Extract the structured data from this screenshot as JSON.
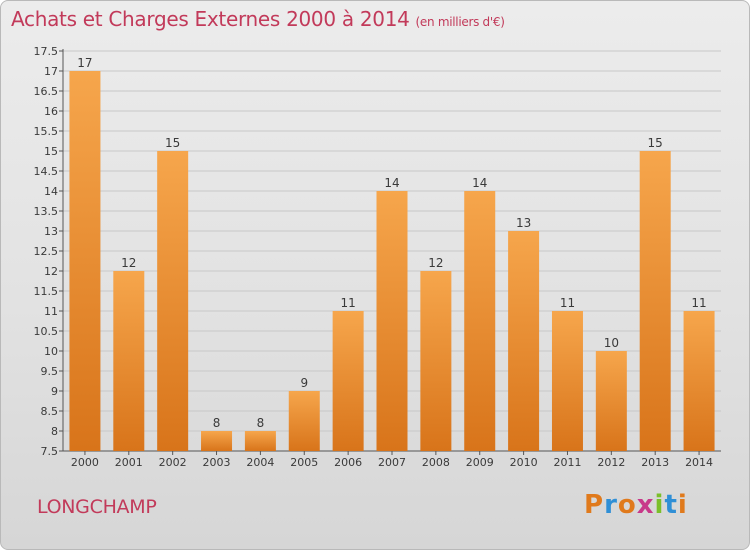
{
  "title": "Achats et Charges Externes 2000 à 2014",
  "subtitle": "(en milliers d'€)",
  "commune": "LONGCHAMP",
  "logo": {
    "letters": [
      "P",
      "r",
      "o",
      "x",
      "i",
      "t",
      "i"
    ],
    "colors": [
      "#e07a1c",
      "#2f8fd6",
      "#e07a1c",
      "#c8398a",
      "#7bbf2a",
      "#2f8fd6",
      "#e07a1c"
    ]
  },
  "colors": {
    "bar_top": "#f6a64c",
    "bar_bottom": "#d8741a",
    "title": "#c23a5a"
  },
  "chart_data": {
    "type": "bar",
    "categories": [
      "2000",
      "2001",
      "2002",
      "2003",
      "2004",
      "2005",
      "2006",
      "2007",
      "2008",
      "2009",
      "2010",
      "2011",
      "2012",
      "2013",
      "2014"
    ],
    "values": [
      17,
      12,
      15,
      8,
      8,
      9,
      11,
      14,
      12,
      14,
      13,
      11,
      10,
      15,
      11
    ],
    "ylim": [
      7.5,
      17.5
    ],
    "yticks": [
      "7.5",
      "8",
      "8.5",
      "9",
      "9.5",
      "10",
      "10.5",
      "11",
      "11.5",
      "12",
      "12.5",
      "13",
      "13.5",
      "14",
      "14.5",
      "15",
      "15.5",
      "16",
      "16.5",
      "17",
      "17.5"
    ],
    "grid": true
  }
}
